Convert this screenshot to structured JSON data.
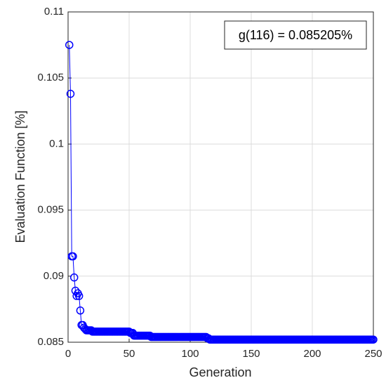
{
  "chart_data": {
    "type": "line",
    "xlabel": "Generation",
    "ylabel": "Evaluation Function [%]",
    "annotation": "g(116) = 0.085205%",
    "color": "#0000ff",
    "grid": true,
    "xlim": [
      0,
      250
    ],
    "xticks": [
      0,
      50,
      100,
      150,
      200,
      250
    ],
    "ylim": [
      0.085,
      0.11
    ],
    "yticks": [
      0.085,
      0.09,
      0.095,
      0.1,
      0.105,
      0.11
    ],
    "x": [
      1,
      2,
      3,
      4,
      5,
      6,
      7,
      8,
      9,
      10,
      11,
      12,
      13,
      14,
      15,
      16,
      17,
      18,
      19,
      20,
      21,
      22,
      23,
      24,
      25,
      26,
      27,
      28,
      29,
      30,
      31,
      32,
      33,
      34,
      35,
      36,
      37,
      38,
      39,
      40,
      41,
      42,
      43,
      44,
      45,
      46,
      47,
      48,
      49,
      50,
      51,
      52,
      53,
      54,
      55,
      56,
      57,
      58,
      59,
      60,
      61,
      62,
      63,
      64,
      65,
      66,
      67,
      68,
      69,
      70,
      71,
      72,
      73,
      74,
      75,
      76,
      77,
      78,
      79,
      80,
      81,
      82,
      83,
      84,
      85,
      86,
      87,
      88,
      89,
      90,
      91,
      92,
      93,
      94,
      95,
      96,
      97,
      98,
      99,
      100,
      101,
      102,
      103,
      104,
      105,
      106,
      107,
      108,
      109,
      110,
      111,
      112,
      113,
      114,
      115,
      116,
      117,
      118,
      119,
      120,
      121,
      122,
      123,
      124,
      125,
      126,
      127,
      128,
      129,
      130,
      131,
      132,
      133,
      134,
      135,
      136,
      137,
      138,
      139,
      140,
      141,
      142,
      143,
      144,
      145,
      146,
      147,
      148,
      149,
      150,
      151,
      152,
      153,
      154,
      155,
      156,
      157,
      158,
      159,
      160,
      161,
      162,
      163,
      164,
      165,
      166,
      167,
      168,
      169,
      170,
      171,
      172,
      173,
      174,
      175,
      176,
      177,
      178,
      179,
      180,
      181,
      182,
      183,
      184,
      185,
      186,
      187,
      188,
      189,
      190,
      191,
      192,
      193,
      194,
      195,
      196,
      197,
      198,
      199,
      200,
      201,
      202,
      203,
      204,
      205,
      206,
      207,
      208,
      209,
      210,
      211,
      212,
      213,
      214,
      215,
      216,
      217,
      218,
      219,
      220,
      221,
      222,
      223,
      224,
      225,
      226,
      227,
      228,
      229,
      230,
      231,
      232,
      233,
      234,
      235,
      236,
      237,
      238,
      239,
      240,
      241,
      242,
      243,
      244,
      245,
      246,
      247,
      248,
      249,
      250
    ],
    "values": [
      0.1075,
      0.1038,
      0.0915,
      0.0915,
      0.0899,
      0.0889,
      0.0885,
      0.0887,
      0.0885,
      0.0874,
      0.0863,
      0.0863,
      0.0861,
      0.086,
      0.0859,
      0.0859,
      0.0859,
      0.0859,
      0.0859,
      0.0858,
      0.0858,
      0.0858,
      0.0858,
      0.0858,
      0.0858,
      0.0858,
      0.0858,
      0.0858,
      0.0858,
      0.0858,
      0.0858,
      0.0858,
      0.0858,
      0.0858,
      0.0858,
      0.0858,
      0.0858,
      0.0858,
      0.0858,
      0.0858,
      0.0858,
      0.0858,
      0.0858,
      0.0858,
      0.0858,
      0.0858,
      0.0858,
      0.0858,
      0.0858,
      0.0858,
      0.0857,
      0.0857,
      0.0857,
      0.0855,
      0.0855,
      0.0855,
      0.0855,
      0.0855,
      0.0855,
      0.0855,
      0.0855,
      0.0855,
      0.0855,
      0.0855,
      0.0855,
      0.0855,
      0.0855,
      0.0854,
      0.0854,
      0.0854,
      0.0854,
      0.0854,
      0.0854,
      0.0854,
      0.0854,
      0.0854,
      0.0854,
      0.0854,
      0.0854,
      0.0854,
      0.0854,
      0.0854,
      0.0854,
      0.0854,
      0.0854,
      0.0854,
      0.0854,
      0.0854,
      0.0854,
      0.0854,
      0.0854,
      0.0854,
      0.0854,
      0.0854,
      0.0854,
      0.0854,
      0.0854,
      0.0854,
      0.0854,
      0.0854,
      0.0854,
      0.0854,
      0.0854,
      0.0854,
      0.0854,
      0.0854,
      0.0854,
      0.0854,
      0.0854,
      0.0854,
      0.0854,
      0.0854,
      0.0854,
      0.0853,
      0.0853,
      0.0852,
      0.0852,
      0.0852,
      0.0852,
      0.0852,
      0.0852,
      0.0852,
      0.0852,
      0.0852,
      0.0852,
      0.0852,
      0.0852,
      0.0852,
      0.0852,
      0.0852,
      0.0852,
      0.0852,
      0.0852,
      0.0852,
      0.0852,
      0.0852,
      0.0852,
      0.0852,
      0.0852,
      0.0852,
      0.0852,
      0.0852,
      0.0852,
      0.0852,
      0.0852,
      0.0852,
      0.0852,
      0.0852,
      0.0852,
      0.0852,
      0.0852,
      0.0852,
      0.0852,
      0.0852,
      0.0852,
      0.0852,
      0.0852,
      0.0852,
      0.0852,
      0.0852,
      0.0852,
      0.0852,
      0.0852,
      0.0852,
      0.0852,
      0.0852,
      0.0852,
      0.0852,
      0.0852,
      0.0852,
      0.0852,
      0.0852,
      0.0852,
      0.0852,
      0.0852,
      0.0852,
      0.0852,
      0.0852,
      0.0852,
      0.0852,
      0.0852,
      0.0852,
      0.0852,
      0.0852,
      0.0852,
      0.0852,
      0.0852,
      0.0852,
      0.0852,
      0.0852,
      0.0852,
      0.0852,
      0.0852,
      0.0852,
      0.0852,
      0.0852,
      0.0852,
      0.0852,
      0.0852,
      0.0852,
      0.0852,
      0.0852,
      0.0852,
      0.0852,
      0.0852,
      0.0852,
      0.0852,
      0.0852,
      0.0852,
      0.0852,
      0.0852,
      0.0852,
      0.0852,
      0.0852,
      0.0852,
      0.0852,
      0.0852,
      0.0852,
      0.0852,
      0.0852,
      0.0852,
      0.0852,
      0.0852,
      0.0852,
      0.0852,
      0.0852,
      0.0852,
      0.0852,
      0.0852,
      0.0852,
      0.0852,
      0.0852,
      0.0852,
      0.0852,
      0.0852,
      0.0852,
      0.0852,
      0.0852,
      0.0852,
      0.0852,
      0.0852,
      0.0852,
      0.0852,
      0.0852,
      0.0852,
      0.0852,
      0.0852,
      0.0852,
      0.0852,
      0.0852
    ]
  }
}
